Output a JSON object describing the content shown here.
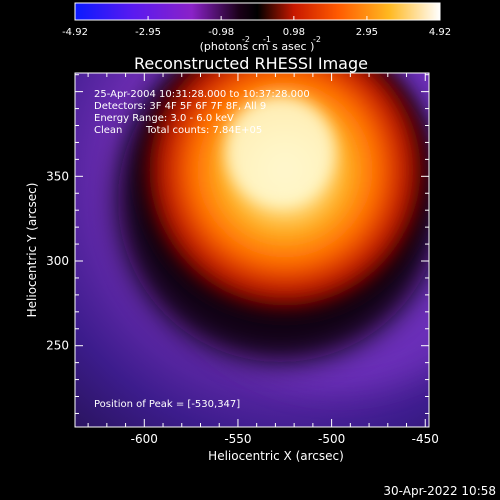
{
  "chart_data": {
    "type": "heatmap",
    "title": "Reconstructed RHESSI Image",
    "colorbar": {
      "ticks": [
        "-4.92",
        "-2.95",
        "-0.98",
        "0.98",
        "2.95",
        "4.92"
      ],
      "tick_values": [
        -4.92,
        -2.95,
        -0.98,
        0.98,
        2.95,
        4.92
      ],
      "range": [
        -4.92,
        4.92
      ],
      "units_text": "(photons cm  s  asec  )",
      "units_exp1": "-2",
      "units_exp2": "-1",
      "units_exp3": "-2"
    },
    "xlabel": "Heliocentric X (arcsec)",
    "ylabel": "Heliocentric Y (arcsec)",
    "xlim": [
      -637,
      -448
    ],
    "ylim": [
      202,
      411
    ],
    "x_ticks": [
      "-600",
      "-550",
      "-500",
      "-450"
    ],
    "x_tick_values": [
      -600,
      -550,
      -500,
      -450
    ],
    "y_ticks": [
      "250",
      "300",
      "350"
    ],
    "y_tick_values": [
      250,
      300,
      350
    ],
    "annotations": {
      "line1": "25-Apr-2004 10:31:28.000 to 10:37:28.000",
      "line2": "Detectors: 3F 4F 5F 6F 7F 8F, All 9",
      "line3": "Energy Range: 3.0 - 6.0 keV",
      "line4_left": "Clean",
      "line4_right": "Total counts: 7.84E+05",
      "peak": "Position of Peak = [-530,347]"
    },
    "peak": {
      "x": -530,
      "y": 347
    }
  },
  "footer": {
    "timestamp": "30-Apr-2022 10:58"
  }
}
